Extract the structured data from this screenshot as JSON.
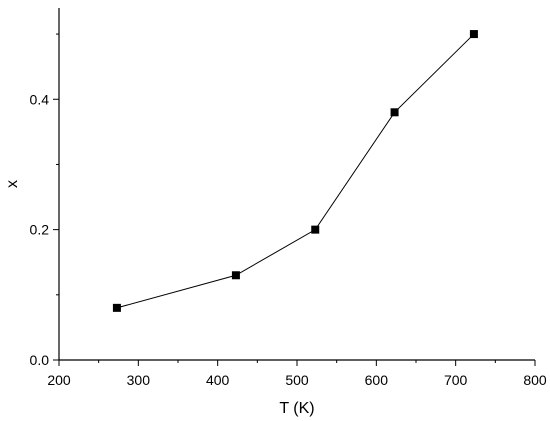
{
  "chart_data": {
    "type": "line",
    "title": "",
    "xlabel": "T (K)",
    "ylabel": "x",
    "xlim": [
      200,
      800
    ],
    "ylim": [
      0.0,
      0.54
    ],
    "x_ticks": [
      200,
      300,
      400,
      500,
      600,
      700,
      800
    ],
    "x_tick_labels": [
      "200",
      "300",
      "400",
      "500",
      "600",
      "700",
      "800"
    ],
    "y_ticks": [
      0.0,
      0.2,
      0.4
    ],
    "y_tick_labels": [
      "0.0",
      "0.2",
      "0.4"
    ],
    "grid": false,
    "series": [
      {
        "marker": "square",
        "color": "#000000",
        "x": [
          273,
          423,
          523,
          623,
          723
        ],
        "y": [
          0.08,
          0.13,
          0.2,
          0.38,
          0.5
        ]
      }
    ]
  }
}
